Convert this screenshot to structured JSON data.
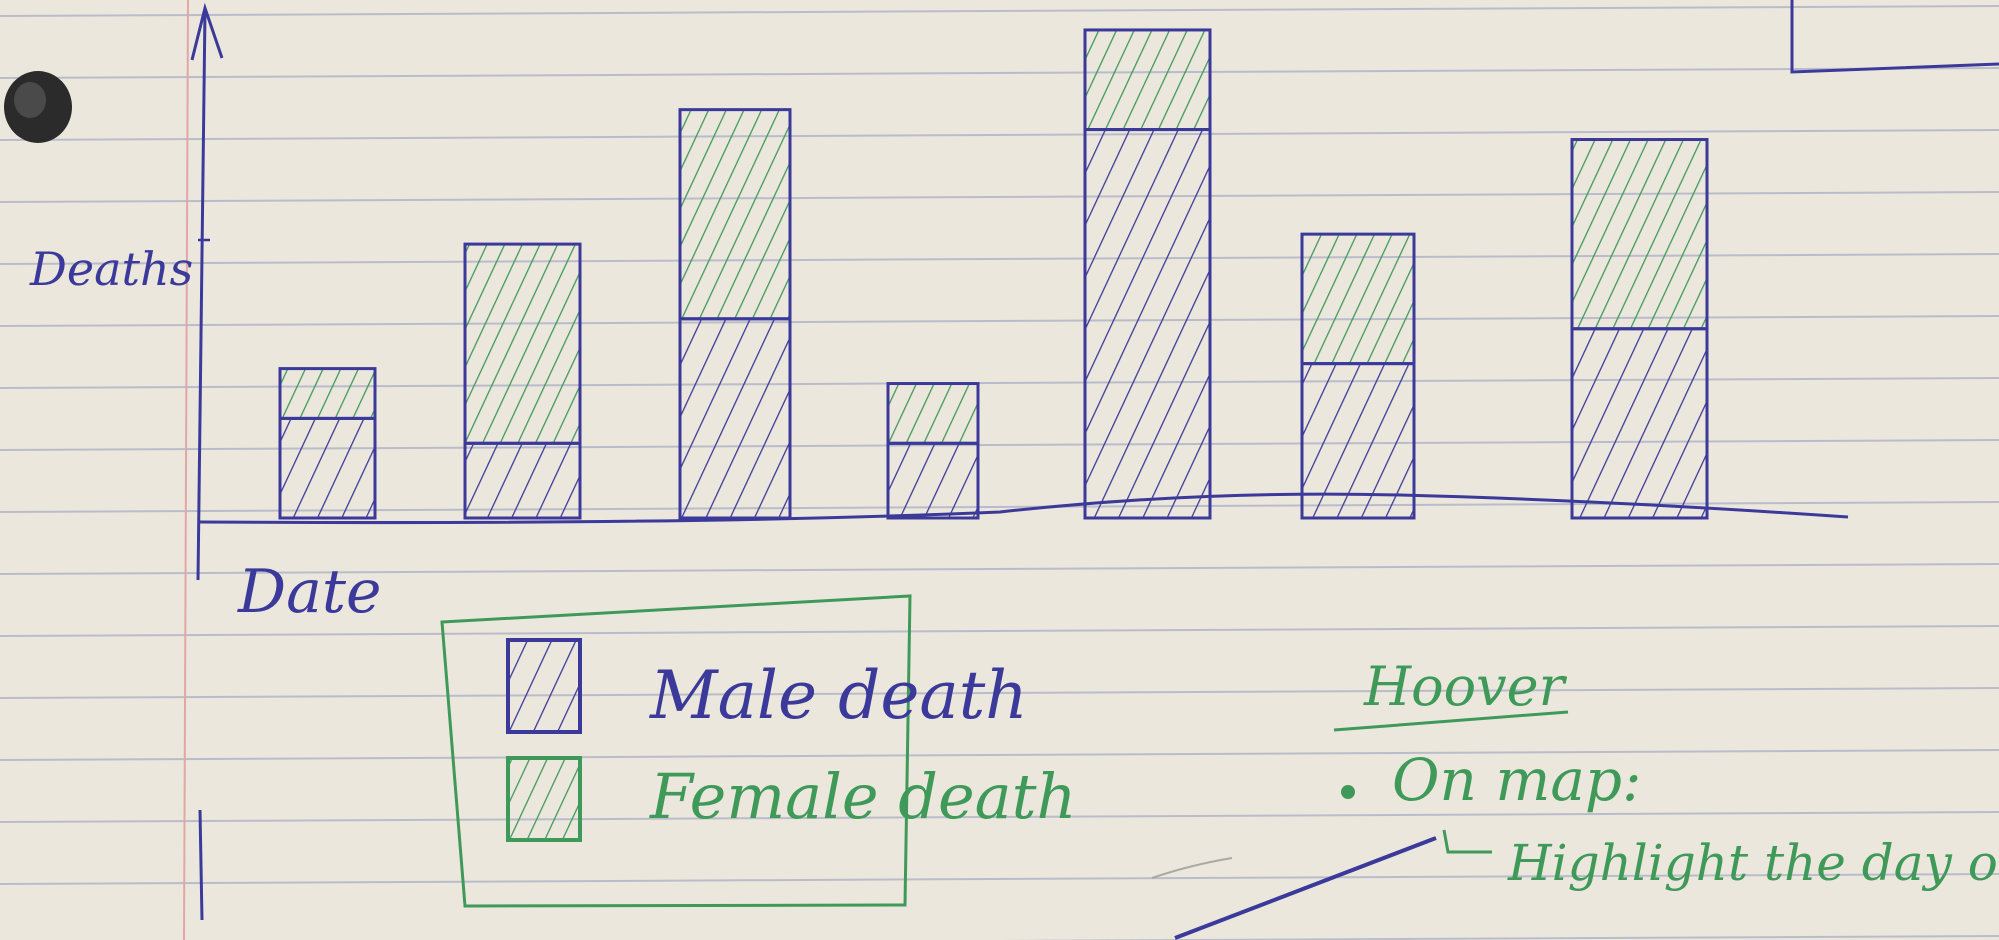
{
  "colors": {
    "paper": "#ece7dc",
    "rule_line": "#b9bccb",
    "margin_line": "#e3a6a6",
    "ink_blue": "#3b3a9a",
    "ink_green": "#3f9a5a"
  },
  "chart_data": {
    "type": "bar",
    "stacked": true,
    "title": "",
    "xlabel": "Date",
    "ylabel": "Deaths",
    "ylim": [
      0,
      100
    ],
    "categories": [
      "",
      "",
      "",
      "",
      "",
      "",
      ""
    ],
    "series": [
      {
        "name": "Male death",
        "color": "#3b3a9a",
        "values": [
          20,
          15,
          40,
          15,
          78,
          31,
          38
        ]
      },
      {
        "name": "Female death",
        "color": "#3f9a5a",
        "values": [
          10,
          40,
          42,
          12,
          20,
          26,
          38
        ]
      }
    ],
    "legend": {
      "position": "bottom-left",
      "items": [
        {
          "label": "Male death",
          "icon": "blue-hatched-swatch"
        },
        {
          "label": "Female death",
          "icon": "green-hatched-swatch"
        }
      ]
    },
    "grid": false
  },
  "notes": {
    "heading": "Hoover",
    "bullet": "On map:",
    "sub_item": "Highlight the day on"
  }
}
